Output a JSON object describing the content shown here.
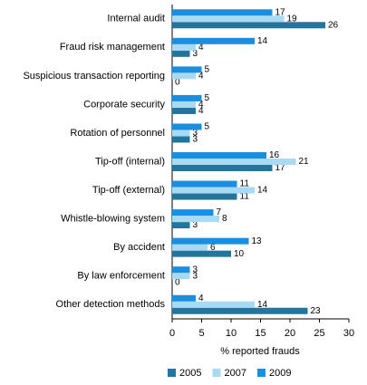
{
  "chart_data": {
    "type": "hbar",
    "categories": [
      "Internal audit",
      "Fraud risk management",
      "Suspicious transaction reporting",
      "Corporate security",
      "Rotation of personnel",
      "Tip-off (internal)",
      "Tip-off (external)",
      "Whistle-blowing system",
      "By accident",
      "By law enforcement",
      "Other detection methods"
    ],
    "series": [
      {
        "name": "2005",
        "color": "#24759e",
        "values": [
          26,
          3,
          0,
          4,
          3,
          17,
          11,
          3,
          10,
          0,
          23
        ]
      },
      {
        "name": "2007",
        "color": "#a8daf4",
        "values": [
          19,
          4,
          4,
          4,
          3,
          21,
          14,
          8,
          6,
          3,
          14
        ]
      },
      {
        "name": "2009",
        "color": "#1b8ee0",
        "values": [
          17,
          14,
          5,
          5,
          5,
          16,
          11,
          7,
          13,
          3,
          4
        ]
      }
    ],
    "x_label": "% reported frauds",
    "xlim": [
      0,
      30
    ],
    "xticks": [
      0,
      5,
      10,
      15,
      20,
      25,
      30
    ],
    "grid": false,
    "legend": "bottom"
  }
}
